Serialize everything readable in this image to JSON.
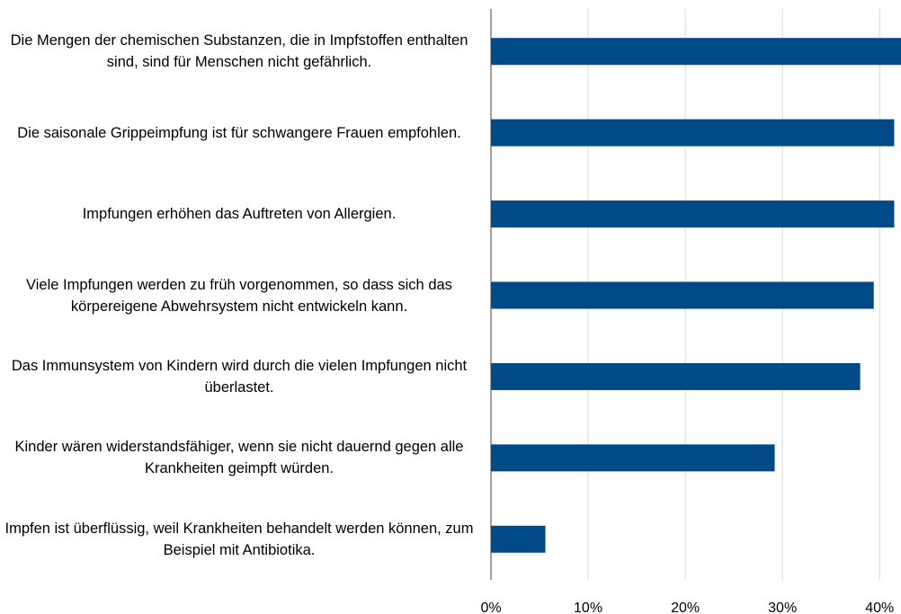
{
  "chart_data": {
    "type": "hbar",
    "categories": [
      "Die Mengen der chemischen Substanzen, die in Impfstoffen enthalten sind, sind für Menschen nicht gefährlich.",
      "Die saisonale Grippeimpfung ist für schwangere Frauen empfohlen.",
      "Impfungen erhöhen das Auftreten von Allergien.",
      "Viele Impfungen werden zu früh vorgenommen, so dass sich das körpereigene Abwehrsystem nicht entwickeln kann.",
      "Das Immunsystem von Kindern wird durch die vielen Impfungen nicht überlastet.",
      "Kinder wären widerstandsfähiger, wenn sie nicht dauernd gegen alle Krankheiten geimpft würden.",
      "Impfen ist überflüssig, weil Krankheiten behandelt werden können, zum Beispiel mit Antibiotika."
    ],
    "values": [
      43,
      41.5,
      41.5,
      39.4,
      38.0,
      29.2,
      5.6
    ],
    "color": "#004a87",
    "xlim": [
      0,
      42.2
    ],
    "xticks": [
      {
        "value": 0,
        "label": "0%"
      },
      {
        "value": 10,
        "label": "10%"
      },
      {
        "value": 20,
        "label": "20%"
      },
      {
        "value": 30,
        "label": "30%"
      },
      {
        "value": 40,
        "label": "40%"
      }
    ],
    "grid": true
  }
}
